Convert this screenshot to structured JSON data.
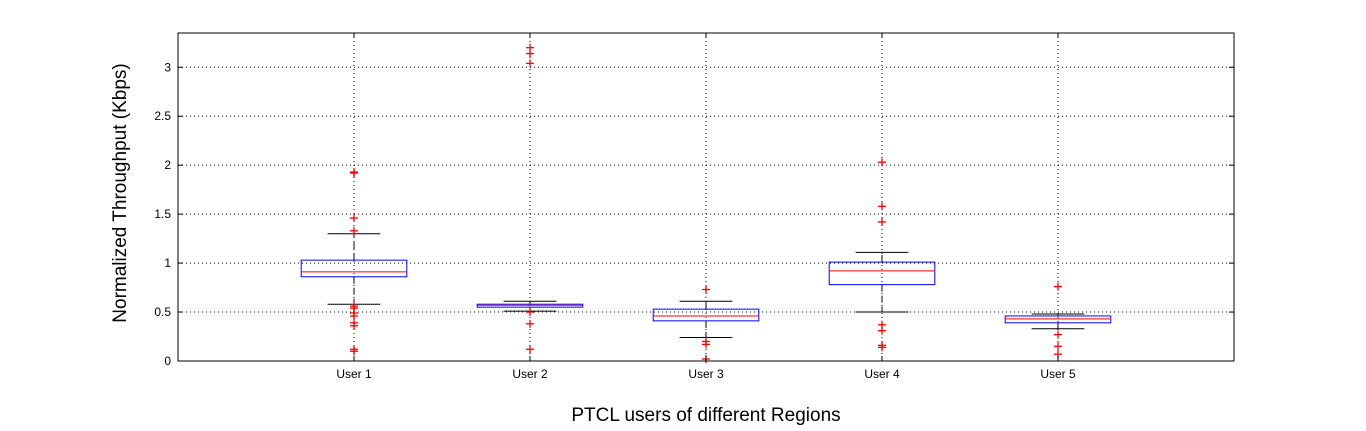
{
  "chart_data": {
    "type": "boxplot",
    "title": "",
    "xlabel": "PTCL users of different Regions",
    "ylabel": "Normalized Throughput (Kbps)",
    "ylim": [
      0,
      3.35
    ],
    "yticks": [
      0,
      0.5,
      1,
      1.5,
      2,
      2.5,
      3
    ],
    "ytick_labels": [
      "0",
      "0.5",
      "1",
      "1.5",
      "2",
      "2.5",
      "3"
    ],
    "grid": true,
    "categories": [
      "User 1",
      "User 2",
      "User 3",
      "User 4",
      "User 5"
    ],
    "boxes": [
      {
        "whisker_low": 0.58,
        "q1": 0.86,
        "median": 0.91,
        "q3": 1.03,
        "whisker_high": 1.3,
        "outliers": [
          1.93,
          1.92,
          1.46,
          1.33,
          0.56,
          0.54,
          0.49,
          0.46,
          0.39,
          0.36,
          0.12,
          0.1
        ]
      },
      {
        "whisker_low": 0.51,
        "q1": 0.55,
        "median": 0.57,
        "q3": 0.58,
        "whisker_high": 0.61,
        "outliers": [
          3.2,
          3.14,
          3.04,
          0.5,
          0.38,
          0.12
        ]
      },
      {
        "whisker_low": 0.24,
        "q1": 0.41,
        "median": 0.46,
        "q3": 0.53,
        "whisker_high": 0.61,
        "outliers": [
          0.73,
          0.2,
          0.17,
          0.02
        ]
      },
      {
        "whisker_low": 0.5,
        "q1": 0.78,
        "median": 0.92,
        "q3": 1.01,
        "whisker_high": 1.11,
        "outliers": [
          2.03,
          1.58,
          1.42,
          0.37,
          0.31,
          0.16,
          0.14
        ]
      },
      {
        "whisker_low": 0.33,
        "q1": 0.39,
        "median": 0.43,
        "q3": 0.46,
        "whisker_high": 0.48,
        "outliers": [
          0.76,
          0.27,
          0.15,
          0.07
        ]
      }
    ],
    "colors": {
      "box": "#0000ff",
      "median": "#ff0000",
      "whisker": "#000000",
      "outlier": "#ff0000",
      "grid": "#000000"
    }
  }
}
